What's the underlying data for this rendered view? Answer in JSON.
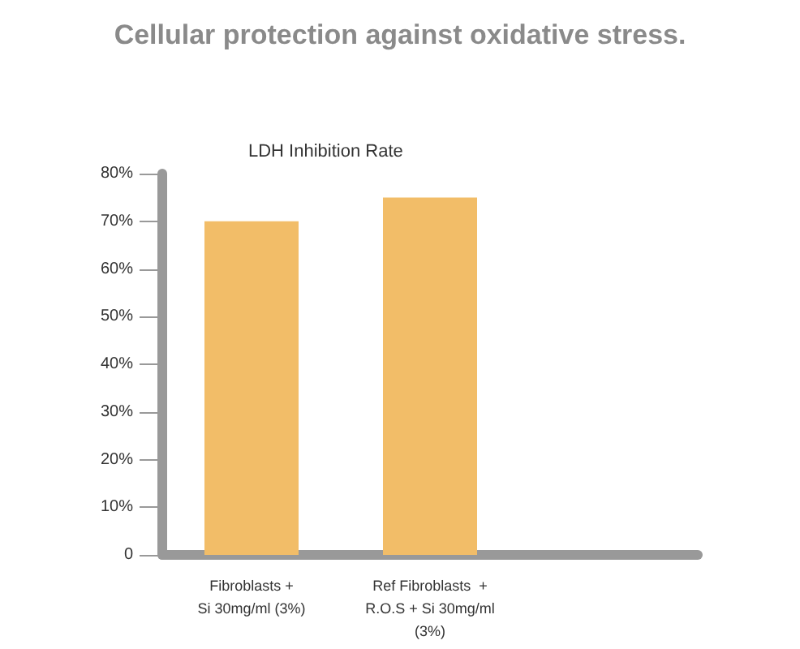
{
  "chart_data": {
    "type": "bar",
    "title": "Cellular protection against oxidative stress.",
    "subtitle": "LDH Inhibition Rate",
    "categories": [
      "Fibroblasts +\nSi 30mg/ml (3%)",
      "Ref Fibroblasts  +\nR.O.S + Si 30mg/ml\n(3%)",
      null
    ],
    "values": [
      70,
      75,
      null
    ],
    "color": "#f2bd68",
    "ylim": [
      0,
      80
    ],
    "yticks": [
      {
        "value": 0,
        "label": "0"
      },
      {
        "value": 10,
        "label": "10%"
      },
      {
        "value": 20,
        "label": "20%"
      },
      {
        "value": 30,
        "label": "30%"
      },
      {
        "value": 40,
        "label": "40%"
      },
      {
        "value": 50,
        "label": "50%"
      },
      {
        "value": 60,
        "label": "60%"
      },
      {
        "value": 70,
        "label": "70%"
      },
      {
        "value": 80,
        "label": "80%"
      }
    ],
    "grid": false
  }
}
